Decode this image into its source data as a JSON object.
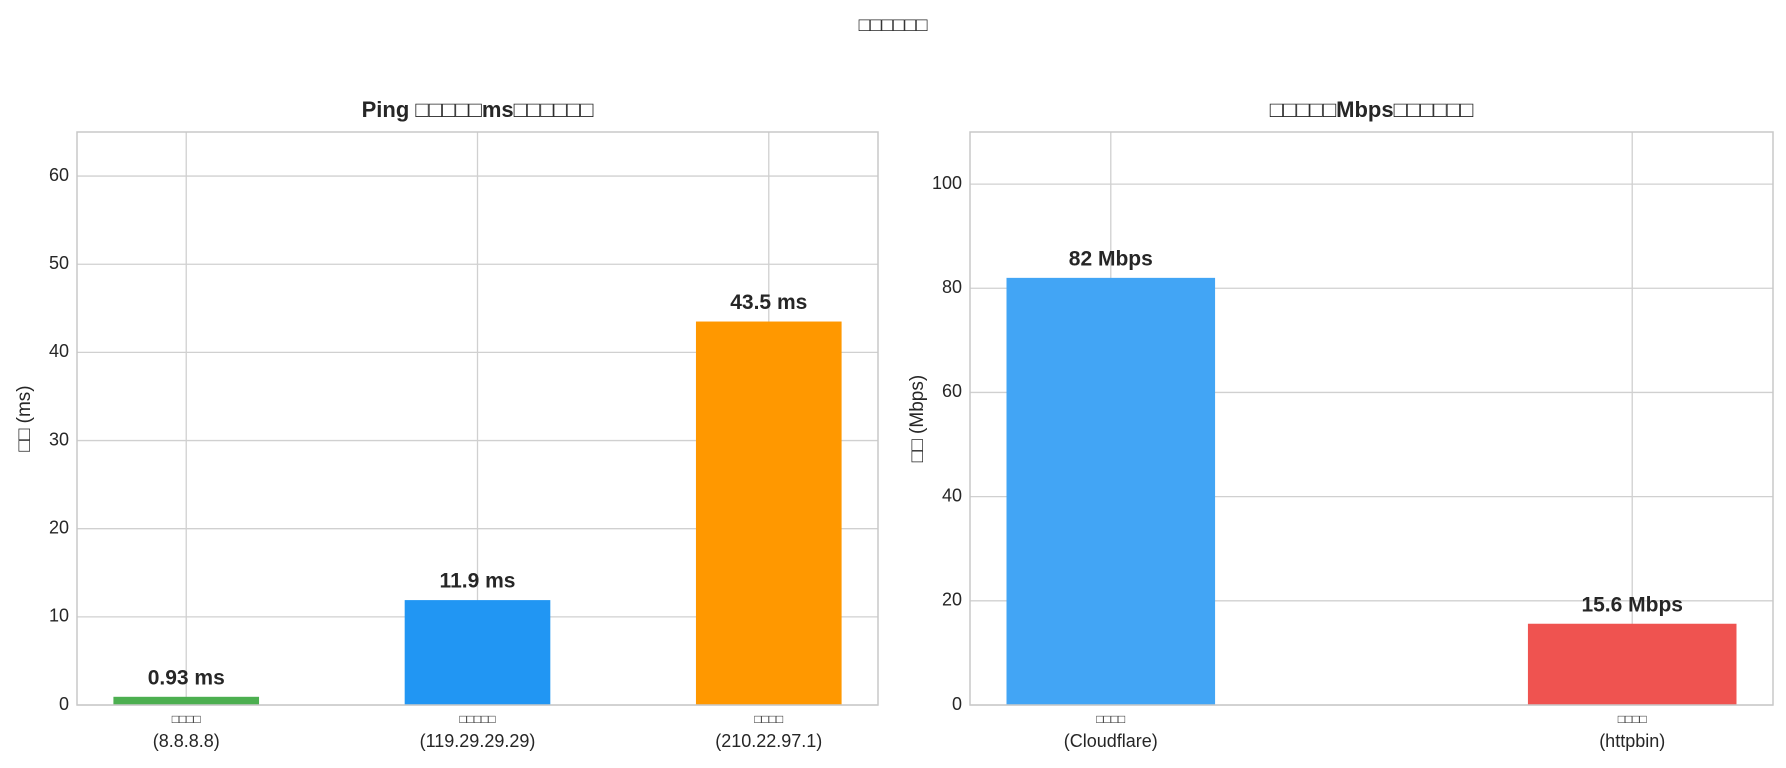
{
  "title": "□□□□□□",
  "chart_data": [
    {
      "type": "bar",
      "title": "Ping □□□□□ms□□□□□□",
      "ylabel": "□□ (ms)",
      "categories": [
        "□□□□\n(8.8.8.8)",
        "□□□□□\n(119.29.29.29)",
        "□□□□\n(210.22.97.1)"
      ],
      "values": [
        0.93,
        11.9,
        43.5
      ],
      "value_labels": [
        "0.93 ms",
        "11.9 ms",
        "43.5 ms"
      ],
      "colors": [
        "#4caf50",
        "#2196f3",
        "#ff9800"
      ],
      "ylim": [
        0,
        65
      ],
      "yticks": [
        0,
        10,
        20,
        30,
        40,
        50,
        60
      ],
      "grid": true
    },
    {
      "type": "bar",
      "title": "□□□□□Mbps□□□□□□",
      "ylabel": "□□ (Mbps)",
      "categories": [
        "□□□□\n(Cloudflare)",
        "□□□□\n(httpbin)"
      ],
      "values": [
        82,
        15.6
      ],
      "value_labels": [
        "82 Mbps",
        "15.6 Mbps"
      ],
      "colors": [
        "#42a5f5",
        "#ef5350"
      ],
      "ylim": [
        0,
        110
      ],
      "yticks": [
        0,
        20,
        40,
        60,
        80,
        100
      ],
      "grid": true
    }
  ]
}
